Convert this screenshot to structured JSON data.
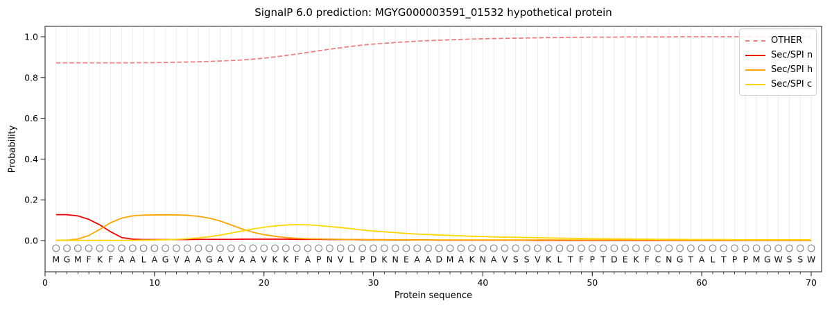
{
  "chart_data": {
    "type": "line",
    "title": "SignalP 6.0 prediction: MGYG000003591_01532 hypothetical protein",
    "xlabel": "Protein sequence",
    "ylabel": "Probability",
    "xlim": [
      0,
      70.9
    ],
    "ylim": [
      -0.15,
      1.05
    ],
    "xticks": [
      0,
      10,
      20,
      30,
      40,
      50,
      60,
      70
    ],
    "yticks": [
      "0.0",
      "0.2",
      "0.4",
      "0.6",
      "0.8",
      "1.0"
    ],
    "grid": "vertical-line-per-residue",
    "legend_position": "upper right",
    "x_start": 1,
    "sequence": "MGMFKFAALAGVAAGAVAAVKKFAPNVLPDKNEAADMAKNAVSSVKLTFPTDEKFCNGTALTPPMGWSSW",
    "colors": {
      "grid": "#ececec",
      "spine": "#1a1a1a",
      "residue_circle": "#8c8c8c",
      "residue_letter": "#111111"
    },
    "series": [
      {
        "name": "OTHER",
        "color": "#f08080",
        "style": "dashed",
        "values": [
          0.872,
          0.872,
          0.872,
          0.872,
          0.872,
          0.872,
          0.872,
          0.872,
          0.873,
          0.873,
          0.874,
          0.875,
          0.876,
          0.877,
          0.879,
          0.881,
          0.883,
          0.886,
          0.89,
          0.895,
          0.901,
          0.908,
          0.915,
          0.923,
          0.931,
          0.939,
          0.946,
          0.953,
          0.959,
          0.964,
          0.968,
          0.972,
          0.975,
          0.978,
          0.981,
          0.983,
          0.985,
          0.987,
          0.989,
          0.99,
          0.991,
          0.992,
          0.993,
          0.994,
          0.995,
          0.996,
          0.996,
          0.997,
          0.997,
          0.998,
          0.998,
          0.998,
          0.999,
          0.999,
          0.999,
          0.999,
          0.999,
          1.0,
          1.0,
          1.0,
          1.0,
          1.0,
          1.0,
          1.0,
          1.0,
          1.0,
          1.0,
          1.0,
          1.0,
          1.0
        ]
      },
      {
        "name": "Sec/SPI n",
        "color": "#f40000",
        "style": "solid",
        "values": [
          0.127,
          0.127,
          0.121,
          0.104,
          0.077,
          0.043,
          0.015,
          0.007,
          0.005,
          0.005,
          0.005,
          0.005,
          0.005,
          0.006,
          0.006,
          0.006,
          0.006,
          0.007,
          0.007,
          0.007,
          0.007,
          0.007,
          0.006,
          0.006,
          0.006,
          0.005,
          0.005,
          0.005,
          0.004,
          0.004,
          0.004,
          0.003,
          0.003,
          0.003,
          0.003,
          0.002,
          0.002,
          0.002,
          0.002,
          0.002,
          0.002,
          0.002,
          0.002,
          0.002,
          0.001,
          0.001,
          0.001,
          0.001,
          0.001,
          0.001,
          0.001,
          0.001,
          0.001,
          0.001,
          0.001,
          0.001,
          0.001,
          0.001,
          0.001,
          0.001,
          0.001,
          0.001,
          0.001,
          0.001,
          0.001,
          0.001,
          0.001,
          0.001,
          0.001,
          0.001
        ]
      },
      {
        "name": "Sec/SPI h",
        "color": "#ffa500",
        "style": "solid",
        "values": [
          0.001,
          0.002,
          0.008,
          0.025,
          0.055,
          0.088,
          0.11,
          0.121,
          0.125,
          0.126,
          0.126,
          0.126,
          0.124,
          0.119,
          0.11,
          0.096,
          0.077,
          0.057,
          0.041,
          0.029,
          0.021,
          0.015,
          0.011,
          0.009,
          0.008,
          0.007,
          0.006,
          0.005,
          0.005,
          0.004,
          0.004,
          0.004,
          0.004,
          0.003,
          0.003,
          0.003,
          0.003,
          0.003,
          0.003,
          0.003,
          0.003,
          0.003,
          0.003,
          0.003,
          0.003,
          0.003,
          0.003,
          0.003,
          0.003,
          0.003,
          0.003,
          0.003,
          0.003,
          0.003,
          0.003,
          0.003,
          0.002,
          0.002,
          0.002,
          0.002,
          0.002,
          0.002,
          0.002,
          0.002,
          0.002,
          0.002,
          0.002,
          0.002,
          0.002,
          0.002
        ]
      },
      {
        "name": "Sec/SPI c",
        "color": "#ffd700",
        "style": "solid",
        "values": [
          0.001,
          0.001,
          0.001,
          0.001,
          0.001,
          0.001,
          0.001,
          0.001,
          0.002,
          0.003,
          0.004,
          0.006,
          0.009,
          0.013,
          0.019,
          0.027,
          0.037,
          0.047,
          0.057,
          0.065,
          0.072,
          0.076,
          0.078,
          0.077,
          0.074,
          0.069,
          0.064,
          0.058,
          0.052,
          0.047,
          0.043,
          0.039,
          0.035,
          0.032,
          0.03,
          0.027,
          0.025,
          0.023,
          0.021,
          0.02,
          0.018,
          0.017,
          0.016,
          0.015,
          0.014,
          0.013,
          0.012,
          0.011,
          0.01,
          0.009,
          0.009,
          0.008,
          0.008,
          0.007,
          0.007,
          0.006,
          0.006,
          0.006,
          0.005,
          0.005,
          0.005,
          0.005,
          0.004,
          0.004,
          0.004,
          0.004,
          0.004,
          0.004,
          0.004,
          0.004
        ]
      }
    ]
  }
}
